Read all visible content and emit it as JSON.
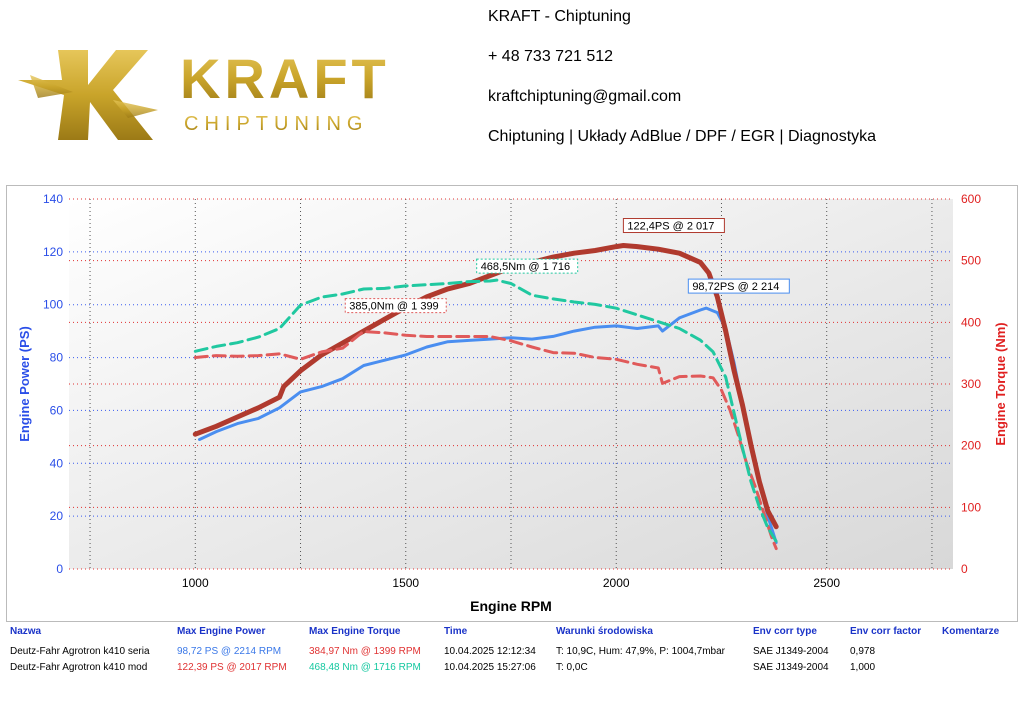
{
  "header": {
    "logo_main": "KRAFT",
    "logo_sub": "CHIPTUNING",
    "contact": {
      "company": "KRAFT - Chiptuning",
      "phone": "+ 48 733 721 512",
      "email": "kraftchiptuning@gmail.com",
      "services": "Chiptuning | Układy AdBlue / DPF / EGR | Diagnostyka"
    },
    "brand_color": "#c9a42a"
  },
  "chart_data": {
    "type": "line",
    "title": "",
    "xlabel": "Engine RPM",
    "ylabel_left": "Engine Power (PS)",
    "ylabel_right": "Engine Torque (Nm)",
    "xlim": [
      700,
      2800
    ],
    "ylim_left": [
      0,
      140
    ],
    "ylim_right": [
      0,
      600
    ],
    "x_ticks": [
      1000,
      1500,
      2000,
      2500
    ],
    "y_ticks_left": [
      0,
      20,
      40,
      60,
      80,
      100,
      120,
      140
    ],
    "y_ticks_right": [
      0,
      100,
      200,
      300,
      400,
      500,
      600
    ],
    "grid": true,
    "series": [
      {
        "axis": "left",
        "style": "solid",
        "color": "#4a8ef0",
        "width": 3,
        "x": [
          1010,
          1050,
          1100,
          1150,
          1200,
          1250,
          1300,
          1350,
          1400,
          1450,
          1500,
          1550,
          1600,
          1650,
          1700,
          1750,
          1800,
          1850,
          1900,
          1950,
          2000,
          2050,
          2100,
          2110,
          2150,
          2200,
          2214,
          2240,
          2260,
          2280,
          2300,
          2320,
          2340,
          2360,
          2380
        ],
        "y": [
          49,
          52,
          55,
          57,
          61,
          67,
          69,
          72,
          77,
          79,
          81,
          84,
          86,
          86.5,
          87,
          87.5,
          87,
          88,
          90,
          91.5,
          92,
          91,
          92,
          90,
          95,
          98,
          98.72,
          97,
          91,
          78,
          62,
          47,
          33,
          20,
          10
        ]
      },
      {
        "axis": "left",
        "style": "solid",
        "color": "#b03a2e",
        "width": 5,
        "x": [
          1000,
          1050,
          1100,
          1150,
          1200,
          1210,
          1250,
          1300,
          1350,
          1400,
          1450,
          1500,
          1550,
          1600,
          1650,
          1700,
          1750,
          1800,
          1850,
          1900,
          1950,
          2000,
          2017,
          2050,
          2100,
          2150,
          2200,
          2220,
          2240,
          2260,
          2280,
          2300,
          2320,
          2340,
          2360,
          2380
        ],
        "y": [
          51,
          54,
          57.5,
          61,
          65,
          69,
          75,
          81,
          85.5,
          90,
          94.5,
          99,
          103,
          106,
          108,
          111,
          114,
          116,
          118,
          119.5,
          120.5,
          122,
          122.4,
          122,
          121,
          119.5,
          116,
          112,
          103,
          90,
          75,
          62,
          47,
          33,
          22,
          16
        ]
      },
      {
        "axis": "right",
        "style": "dashed",
        "color": "#e05a5a",
        "width": 3,
        "x": [
          1000,
          1050,
          1100,
          1150,
          1200,
          1250,
          1300,
          1350,
          1399,
          1450,
          1500,
          1550,
          1600,
          1650,
          1700,
          1750,
          1800,
          1850,
          1900,
          1950,
          2000,
          2050,
          2100,
          2110,
          2150,
          2200,
          2230,
          2250,
          2270,
          2290,
          2310,
          2330,
          2350,
          2370,
          2380
        ],
        "y": [
          343,
          346,
          345,
          346,
          349,
          340,
          352,
          358,
          384.97,
          383,
          379,
          377,
          377,
          377,
          377,
          370,
          360,
          351,
          350,
          343,
          340,
          332,
          326,
          301,
          312,
          313,
          310,
          290,
          258,
          217,
          171,
          134,
          92,
          50,
          33
        ]
      },
      {
        "axis": "right",
        "style": "dashed",
        "color": "#20c8a0",
        "width": 3,
        "x": [
          1000,
          1050,
          1100,
          1150,
          1200,
          1250,
          1300,
          1350,
          1400,
          1450,
          1500,
          1550,
          1600,
          1650,
          1700,
          1716,
          1750,
          1800,
          1850,
          1900,
          1950,
          2000,
          2050,
          2100,
          2150,
          2200,
          2230,
          2260,
          2280,
          2300,
          2320,
          2340,
          2360,
          2380
        ],
        "y": [
          353,
          361,
          367,
          376,
          390,
          428,
          441,
          446,
          454,
          455,
          459,
          461,
          463,
          466,
          467,
          468.48,
          463,
          444,
          438,
          433,
          429,
          423,
          412,
          401,
          390,
          371,
          352,
          311,
          253,
          196,
          142,
          100,
          67,
          45
        ]
      }
    ],
    "annotations": [
      {
        "text": "122,4PS @ 2 017",
        "color": "#b03a2e"
      },
      {
        "text": "468,5Nm @ 1 716",
        "color": "#20c8a0"
      },
      {
        "text": "98,72PS @ 2 214",
        "color": "#4a8ef0"
      },
      {
        "text": "385,0Nm @ 1 399",
        "color": "#e05a5a"
      }
    ]
  },
  "table": {
    "headers": [
      "Nazwa",
      "Max Engine Power",
      "Max Engine Torque",
      "Time",
      "Warunki środowiska",
      "Env corr type",
      "Env corr factor",
      "Komentarze"
    ],
    "rows": [
      [
        "Deutz-Fahr Agrotron k410 seria",
        "98,72 PS @ 2214 RPM",
        "384,97 Nm @ 1399 RPM",
        "10.04.2025 12:12:34",
        "T: 10,9C, Hum: 47,9%, P: 1004,7mbar",
        "SAE J1349-2004",
        "0,978",
        ""
      ],
      [
        "Deutz-Fahr Agrotron k410 mod",
        "122,39 PS @ 2017 RPM",
        "468,48 Nm @ 1716 RPM",
        "10.04.2025 15:27:06",
        "T: 0,0C",
        "SAE J1349-2004",
        "1,000",
        ""
      ]
    ]
  }
}
